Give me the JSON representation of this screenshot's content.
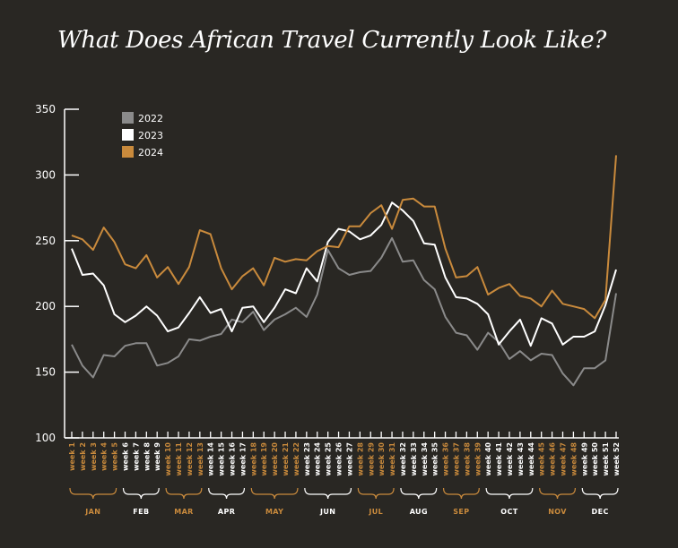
{
  "chart_data": {
    "type": "line",
    "title": "What Does African Travel Currently Look Like?",
    "xlabel": "",
    "ylabel": "",
    "ylim": [
      100,
      350
    ],
    "y_ticks": [
      100,
      150,
      200,
      250,
      300,
      350
    ],
    "grid": false,
    "legend_position": "top-left",
    "categories": [
      "week 1",
      "week 2",
      "week 3",
      "week 4",
      "week 5",
      "week 6",
      "week 7",
      "week 8",
      "week 9",
      "week 10",
      "week 11",
      "week 12",
      "week 13",
      "week 14",
      "week 15",
      "week 16",
      "week 17",
      "week 18",
      "week 19",
      "week 20",
      "week 21",
      "week 22",
      "week 23",
      "week 24",
      "week 25",
      "week 26",
      "week 27",
      "week 28",
      "week 29",
      "week 30",
      "week 31",
      "week 32",
      "week 33",
      "week 34",
      "week 35",
      "week 36",
      "week 37",
      "week 38",
      "week 39",
      "week 40",
      "week 41",
      "week 42",
      "week 43",
      "week 44",
      "week 45",
      "week 46",
      "week 47",
      "week 48",
      "week 49",
      "week 50",
      "week 51",
      "week 52"
    ],
    "months": [
      {
        "label": "JAN",
        "start": 1,
        "end": 5,
        "color": "#c98a3c"
      },
      {
        "label": "FEB",
        "start": 6,
        "end": 9,
        "color": "#ffffff"
      },
      {
        "label": "MAR",
        "start": 10,
        "end": 13,
        "color": "#c98a3c"
      },
      {
        "label": "APR",
        "start": 14,
        "end": 17,
        "color": "#ffffff"
      },
      {
        "label": "MAY",
        "start": 18,
        "end": 22,
        "color": "#c98a3c"
      },
      {
        "label": "JUN",
        "start": 23,
        "end": 27,
        "color": "#ffffff"
      },
      {
        "label": "JUL",
        "start": 28,
        "end": 31,
        "color": "#c98a3c"
      },
      {
        "label": "AUG",
        "start": 32,
        "end": 35,
        "color": "#ffffff"
      },
      {
        "label": "SEP",
        "start": 36,
        "end": 39,
        "color": "#c98a3c"
      },
      {
        "label": "OCT",
        "start": 40,
        "end": 44,
        "color": "#ffffff"
      },
      {
        "label": "NOV",
        "start": 45,
        "end": 48,
        "color": "#c98a3c"
      },
      {
        "label": "DEC",
        "start": 49,
        "end": 52,
        "color": "#ffffff"
      }
    ],
    "series": [
      {
        "name": "2022",
        "color": "#8a8a8a",
        "values": [
          171,
          155,
          146,
          163,
          162,
          170,
          172,
          172,
          155,
          157,
          162,
          175,
          174,
          177,
          179,
          190,
          188,
          196,
          182,
          190,
          194,
          199,
          192,
          209,
          243,
          229,
          224,
          226,
          227,
          237,
          252,
          234,
          235,
          220,
          213,
          192,
          180,
          178,
          167,
          180,
          173,
          160,
          166,
          159,
          164,
          163,
          149,
          140,
          153,
          153,
          159,
          210
        ]
      },
      {
        "name": "2023",
        "color": "#ffffff",
        "values": [
          244,
          224,
          225,
          216,
          194,
          188,
          193,
          200,
          193,
          181,
          184,
          195,
          207,
          195,
          198,
          181,
          199,
          200,
          188,
          199,
          213,
          210,
          229,
          219,
          249,
          259,
          257,
          251,
          254,
          262,
          279,
          273,
          265,
          248,
          247,
          222,
          207,
          206,
          202,
          194,
          171,
          181,
          190,
          170,
          191,
          187,
          171,
          177,
          177,
          181,
          201,
          228
        ]
      },
      {
        "name": "2024",
        "color": "#c98a3c",
        "values": [
          254,
          251,
          243,
          260,
          249,
          232,
          229,
          239,
          222,
          230,
          217,
          230,
          258,
          255,
          229,
          213,
          223,
          229,
          216,
          237,
          234,
          236,
          235,
          242,
          246,
          245,
          261,
          261,
          271,
          277,
          259,
          281,
          282,
          276,
          276,
          244,
          222,
          223,
          230,
          209,
          214,
          217,
          208,
          206,
          200,
          212,
          202,
          200,
          198,
          191,
          205,
          315
        ]
      }
    ]
  }
}
